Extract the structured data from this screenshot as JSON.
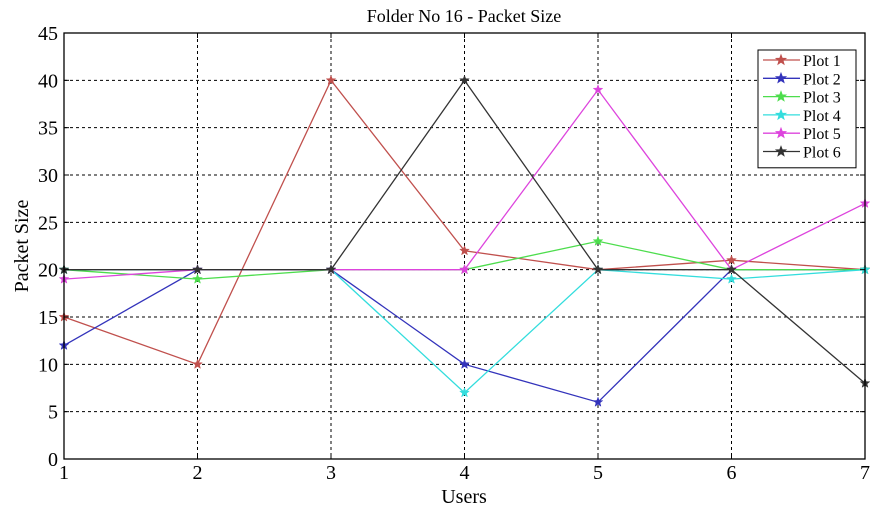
{
  "chart_data": {
    "type": "line",
    "title": "Folder No 16 - Packet Size",
    "xlabel": "Users",
    "ylabel": "Packet Size",
    "x": [
      1,
      2,
      3,
      4,
      5,
      6,
      7
    ],
    "xlim": [
      1,
      7
    ],
    "ylim": [
      0,
      45
    ],
    "xticks": [
      1,
      2,
      3,
      4,
      5,
      6,
      7
    ],
    "yticks": [
      0,
      5,
      10,
      15,
      20,
      25,
      30,
      35,
      40,
      45
    ],
    "grid": true,
    "legend_position": "top-right",
    "marker": "star",
    "series": [
      {
        "name": "Plot 1",
        "color": "#c0504d",
        "values": [
          15,
          10,
          40,
          22,
          20,
          21,
          20
        ]
      },
      {
        "name": "Plot 2",
        "color": "#3333bb",
        "values": [
          12,
          20,
          20,
          10,
          6,
          20,
          20
        ]
      },
      {
        "name": "Plot 3",
        "color": "#4ddd4d",
        "values": [
          20,
          19,
          20,
          20,
          23,
          20,
          20
        ]
      },
      {
        "name": "Plot 4",
        "color": "#33dddd",
        "values": [
          20,
          20,
          20,
          7,
          20,
          19,
          20
        ]
      },
      {
        "name": "Plot 5",
        "color": "#dd44dd",
        "values": [
          19,
          20,
          20,
          20,
          39,
          20,
          27
        ]
      },
      {
        "name": "Plot 6",
        "color": "#333333",
        "values": [
          20,
          20,
          20,
          40,
          20,
          20,
          8
        ]
      }
    ]
  }
}
